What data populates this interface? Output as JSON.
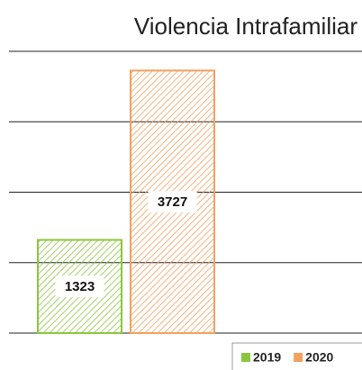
{
  "chart_data": {
    "type": "bar",
    "title": "Violencia Intrafamiliar",
    "series": [
      {
        "name": "2019",
        "color": "#8cc63e",
        "values": [
          1323
        ]
      },
      {
        "name": "2020",
        "color": "#f2a15e",
        "values": [
          3727
        ]
      }
    ],
    "ylim": [
      0,
      4000
    ],
    "yticks": [
      0,
      1000,
      2000,
      3000,
      4000
    ],
    "grid": true,
    "legend": "bottom-right"
  }
}
